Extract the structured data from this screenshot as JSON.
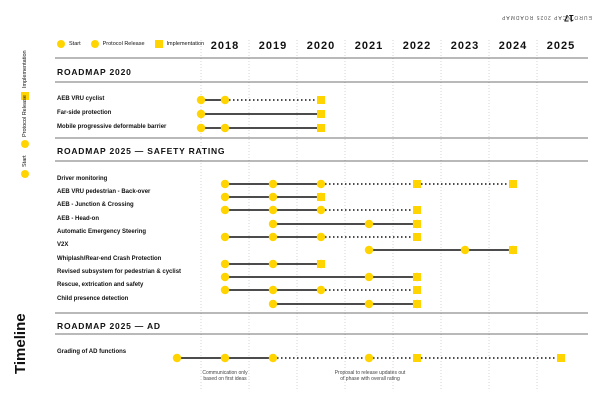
{
  "header": {
    "running_title": "EURO NCAP 2025 ROADMAP",
    "page_number": "17"
  },
  "side": {
    "legend_labels": [
      "Start",
      "Protocol Release",
      "Implementation"
    ],
    "title": "Timeline"
  },
  "legend": {
    "start": "Start",
    "protocol": "Protocol Release",
    "implementation": "Implementation"
  },
  "years": [
    "2018",
    "2019",
    "2020",
    "2021",
    "2022",
    "2023",
    "2024",
    "2025"
  ],
  "sections": {
    "s1": "ROADMAP 2020",
    "s2": "ROADMAP 2025 — SAFETY RATING",
    "s3": "ROADMAP 2025 — AD"
  },
  "rows": [
    {
      "label": "AEB VRU cyclist",
      "start": 2017.5,
      "protocol": 2018,
      "impl": 2020,
      "dotted_from": 2018,
      "solid_to": 2018
    },
    {
      "label": "Far-side protection",
      "start": 2017.5,
      "protocol": null,
      "impl": 2020,
      "dotted_from": null,
      "solid_to": 2020
    },
    {
      "label": "Mobile progressive deformable barrier",
      "start": 2017.5,
      "protocol": 2018,
      "impl": 2020,
      "dotted_from": null,
      "solid_to": 2020
    },
    {
      "label": "Driver monitoring",
      "start": 2018,
      "protocol": 2019,
      "impl": 2020,
      "extra_impl": [
        2022,
        2024
      ],
      "dotted_from": 2020,
      "solid_to": 2020
    },
    {
      "label": "AEB VRU pedestrian - Back-over",
      "start": 2018,
      "protocol": 2019,
      "impl": 2020,
      "dotted_from": null,
      "solid_to": 2020
    },
    {
      "label": "AEB - Junction & Crossing",
      "start": 2018,
      "protocol": 2019,
      "impl": 2020,
      "extra_impl": [
        2022
      ],
      "dotted_from": 2020,
      "solid_to": 2020
    },
    {
      "label": "AEB - Head-on",
      "start": 2019,
      "protocol": 2021,
      "impl": 2022,
      "dotted_from": null,
      "solid_to": 2022
    },
    {
      "label": "Automatic Emergency Steering",
      "start": 2018,
      "protocol": 2019,
      "impl": 2020,
      "extra_impl": [
        2022
      ],
      "dotted_from": 2020,
      "solid_to": 2020
    },
    {
      "label": "V2X",
      "start": 2021,
      "protocol": 2023,
      "impl": 2024,
      "dotted_from": null,
      "solid_to": 2024
    },
    {
      "label": "Whiplash/Rear-end Crash Protection",
      "start": 2018,
      "protocol": 2019,
      "impl": 2020,
      "dotted_from": null,
      "solid_to": 2020
    },
    {
      "label": "Revised subsystem for pedestrian & cyclist",
      "start": 2018,
      "protocol": 2021,
      "impl": 2022,
      "dotted_from": null,
      "solid_to": 2022
    },
    {
      "label": "Rescue, extrication and safety",
      "start": 2018,
      "protocol": 2019,
      "impl": 2020,
      "extra_impl": [
        2022
      ],
      "dotted_from": 2020,
      "solid_to": 2020
    },
    {
      "label": "Child presence detection",
      "start": 2019,
      "protocol": 2021,
      "impl": 2022,
      "dotted_from": null,
      "solid_to": 2022
    }
  ],
  "ad_row": {
    "label": "Grading of AD functions",
    "start": 2017,
    "protocol": [
      2018,
      2019,
      2021
    ],
    "impl": [
      2022,
      2025
    ],
    "solid_to": 2019
  },
  "notes": {
    "n1_line1": "Communication only",
    "n1_line2": "based on first ideas",
    "n2_line1": "Proposal to release updates out",
    "n2_line2": "of phase with overall rating"
  },
  "colors": {
    "accent": "#FFD400",
    "line": "#111111"
  }
}
